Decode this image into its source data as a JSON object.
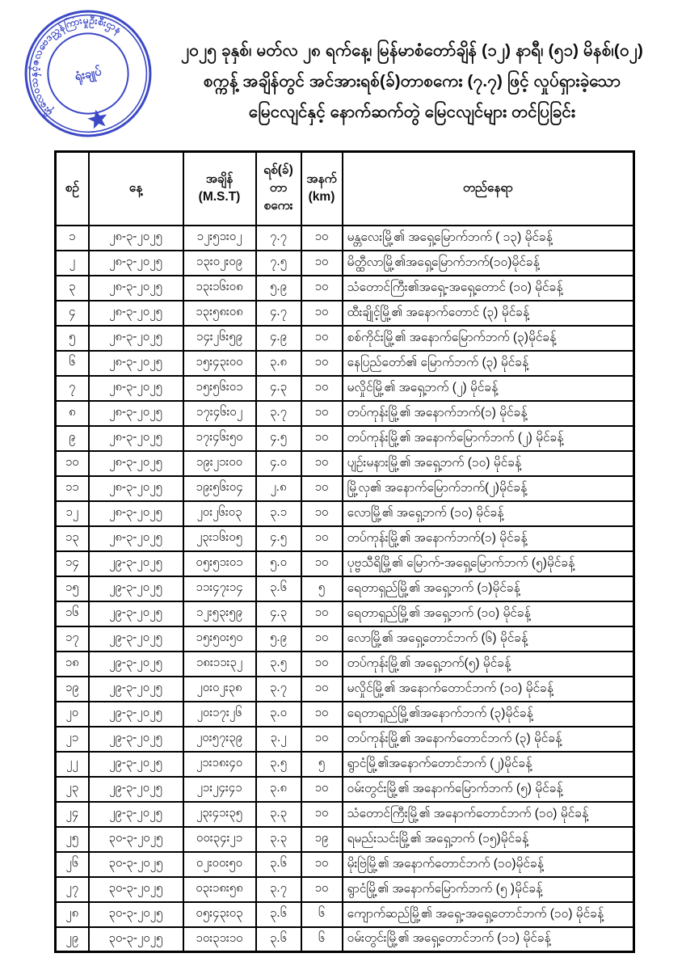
{
  "stamp": {
    "ring_text": "မိုးလေဝသနှင့်ဇလဗေဒညွှန်ကြားမှုဦးစီးဌာန",
    "center_text": "ရုံးချုပ်",
    "star_icon": "star",
    "color": "#3c49c6"
  },
  "title": {
    "lines": [
      "၂၀၂၅ ခုနှစ်၊ မတ်လ ၂၈ ရက်နေ့၊ မြန်မာစံတော်ချိန် (၁၂) နာရီ၊ (၅၁) မိနစ်၊(၀၂)",
      "စက္ကန့် အချိန်တွင် အင်အားရစ်(ခ်)တာစကေး (၇.၇) ဖြင့် လှုပ်ရှားခဲ့သော",
      "မြေငလျင်နှင့် နောက်ဆက်တွဲ မြေငလျင်များ တင်ပြခြင်း"
    ]
  },
  "table": {
    "headers": {
      "no": "စဉ်",
      "date": "နေ့",
      "time": "အချိန် (M.S.T)",
      "magnitude": "ရစ်(ခ်)\nတာ\nစကေး",
      "depth": "အနက်\n(km)",
      "location": "တည်နေရာ"
    },
    "row_keys": [
      "no",
      "date",
      "time",
      "magnitude",
      "depth",
      "location"
    ],
    "rows": [
      {
        "no": "၁",
        "date": "၂၈-၃-၂၀၂၅",
        "time": "၁၂း၅၁း၀၂",
        "magnitude": "၇.၇",
        "depth": "၁၀",
        "location": "မန္တလေးမြို့၏ အရှေ့မြောက်ဘက် ( ၁၃) မိုင်ခန့်"
      },
      {
        "no": "၂",
        "date": "၂၈-၃-၂၀၂၅",
        "time": "၁၃း၀၂း၀၉",
        "magnitude": "၇.၅",
        "depth": "၁၀",
        "location": "မိတ္ထီလာမြို့၏အရှေ့မြောက်ဘက်(၁၀)မိုင်ခန့်"
      },
      {
        "no": "၃",
        "date": "၂၈-၃-၂၀၂၅",
        "time": "၁၃း၁၆း၀၈",
        "magnitude": "၅.၉",
        "depth": "၁၀",
        "location": "သံတောင်ကြီး၏အရှေ့-အရှေ့တောင် (၁၀) မိုင်ခန့်"
      },
      {
        "no": "၄",
        "date": "၂၈-၃-၂၀၂၅",
        "time": "၁၃း၅၈း၀၈",
        "magnitude": "၄.၇",
        "depth": "၁၀",
        "location": "ထီးချိုင့်မြို့၏ အနောက်တောင် (၃) မိုင်ခန့်"
      },
      {
        "no": "၅",
        "date": "၂၈-၃-၂၀၂၅",
        "time": "၁၄း၂၆း၅၉",
        "magnitude": "၄.၉",
        "depth": "၁၀",
        "location": "စစ်ကိုင်းမြို့၏ အနောက်မြောက်ဘက် (၃)မိုင်ခန့်"
      },
      {
        "no": "၆",
        "date": "၂၈-၃-၂၀၂၅",
        "time": "၁၅း၄၃း၀၀",
        "magnitude": "၃.၈",
        "depth": "၁၀",
        "location": "နေပြည်တော်၏ မြောက်ဘက် (၃) မိုင်ခန့်"
      },
      {
        "no": "၇",
        "date": "၂၈-၃-၂၀၂၅",
        "time": "၁၅း၅၆း၀၁",
        "magnitude": "၄.၃",
        "depth": "၁၀",
        "location": "မလှိုင်မြို့၏ အရှေ့ဘက် (၂) မိုင်ခန့်"
      },
      {
        "no": "၈",
        "date": "၂၈-၃-၂၀၂၅",
        "time": "၁၇း၄၆း၀၂",
        "magnitude": "၃.၇",
        "depth": "၁၀",
        "location": "တပ်ကုန်းမြို့၏ အနောက်ဘက်(၁) မိုင်ခန့်"
      },
      {
        "no": "၉",
        "date": "၂၈-၃-၂၀၂၅",
        "time": "၁၇း၄၆း၅၀",
        "magnitude": "၄.၅",
        "depth": "၁၀",
        "location": "တပ်ကုန်းမြို့၏ အနောက်မြောက်ဘက် (၂) မိုင်ခန့်"
      },
      {
        "no": "၁၀",
        "date": "၂၈-၃-၂၀၂၅",
        "time": "၁၉း၂၁း၀၀",
        "magnitude": "၄.၀",
        "depth": "၁၀",
        "location": "ပျဉ်းမနားမြို့၏ အရှေ့ဘက် (၁၀) မိုင်ခန့်"
      },
      {
        "no": "၁၁",
        "date": "၂၈-၃-၂၀၂၅",
        "time": "၁၉း၅၆း၀၄",
        "magnitude": "၂.၈",
        "depth": "၁၀",
        "location": "မြို့လှ၏ အနောက်မြောက်ဘက်(၂)မိုင်ခန့်"
      },
      {
        "no": "၁၂",
        "date": "၂၈-၃-၂၀၂၅",
        "time": "၂၀း၂၆း၀၃",
        "magnitude": "၃.၁",
        "depth": "၁၀",
        "location": "လောမြို့၏ အရှေ့ဘက် (၁၀) မိုင်ခန့်"
      },
      {
        "no": "၁၃",
        "date": "၂၈-၃-၂၀၂၅",
        "time": "၂၃း၁၆း၀၅",
        "magnitude": "၄.၅",
        "depth": "၁၀",
        "location": "တပ်ကုန်းမြို့၏ အနောက်ဘက်(၁) မိုင်ခန့်"
      },
      {
        "no": "၁၄",
        "date": "၂၉-၃-၂၀၂၅",
        "time": "၀၅း၅၁း၀၁",
        "magnitude": "၅.၀",
        "depth": "၁၀",
        "location": "ပုဗ္ဗသီရိမြို့၏ မြောက်-အရှေ့မြောက်ဘက် (၅)မိုင်ခန့်"
      },
      {
        "no": "၁၅",
        "date": "၂၉-၃-၂၀၂၅",
        "time": "၁၁း၄၇း၁၄",
        "magnitude": "၃.၆",
        "depth": "၅",
        "location": "ရေတာရှည်မြို့၏ အရှေ့ဘက် (၁)မိုင်ခန့်"
      },
      {
        "no": "၁၆",
        "date": "၂၉-၃-၂၀၂၅",
        "time": "၁၂း၅၃း၅၉",
        "magnitude": "၄.၃",
        "depth": "၁၀",
        "location": "ရေတာရှည်မြို့၏ အရှေ့ဘက် (၁၀) မိုင်ခန့်"
      },
      {
        "no": "၁၇",
        "date": "၂၉-၃-၂၀၂၅",
        "time": "၁၅း၅၀း၅၀",
        "magnitude": "၅.၉",
        "depth": "၁၀",
        "location": "လောမြို့၏ အရှေ့တောင်ဘက် (၆) မိုင်ခန့်"
      },
      {
        "no": "၁၈",
        "date": "၂၉-၃-၂၀၂၅",
        "time": "၁၈း၁၁း၃၂",
        "magnitude": "၃.၅",
        "depth": "၁၀",
        "location": "တပ်ကုန်းမြို့၏ အရှေ့ဘက်(၅) မိုင်ခန့်"
      },
      {
        "no": "၁၉",
        "date": "၂၉-၃-၂၀၂၅",
        "time": "၂၀း၀၂း၃၈",
        "magnitude": "၃.၇",
        "depth": "၁၀",
        "location": "မလှိုင်မြို့၏ အနောက်တောင်ဘက် (၁၀) မိုင်ခန့်"
      },
      {
        "no": "၂၀",
        "date": "၂၉-၃-၂၀၂၅",
        "time": "၂၀း၁၇း၂၆",
        "magnitude": "၃.၀",
        "depth": "၁၀",
        "location": "ရေတာရှည်မြို့၏အနောက်ဘက် (၃)မိုင်ခန့်"
      },
      {
        "no": "၂၁",
        "date": "၂၉-၃-၂၀၂၅",
        "time": "၂၀း၅၇း၃၉",
        "magnitude": "၃.၂",
        "depth": "၁၀",
        "location": "တပ်ကုန်းမြို့၏ အနောက်တောင်ဘက် (၃) မိုင်ခန့်"
      },
      {
        "no": "၂၂",
        "date": "၂၉-၃-၂၀၂၅",
        "time": "၂၁း၁၈း၄၀",
        "magnitude": "၃.၅",
        "depth": "၅",
        "location": "ရွာငံမြို့၏အနောက်တောင်ဘက် (၂)မိုင်ခန့်"
      },
      {
        "no": "၂၃",
        "date": "၂၉-၃-၂၀၂၅",
        "time": "၂၁း၂၄း၄၁",
        "magnitude": "၃.၈",
        "depth": "၁၀",
        "location": "ဝမ်းတွင်းမြို့၏ အနောက်မြောက်ဘက် (၅) မိုင်ခန့်"
      },
      {
        "no": "၂၄",
        "date": "၂၉-၃-၂၀၂၅",
        "time": "၂၃း၄၁း၃၅",
        "magnitude": "၃.၃",
        "depth": "၁၀",
        "location": "သံတောင်ကြီးမြို့၏ အနောက်တောင်ဘက် (၁၀) မိုင်ခန့်"
      },
      {
        "no": "၂၅",
        "date": "၃၀-၃-၂၀၂၅",
        "time": "၀၀း၃၄း၂၁",
        "magnitude": "၃.၃",
        "depth": "၁၉",
        "location": "ရမည်းသင်းမြို့၏ အရှေ့ဘက် (၁၅)မိုင်ခန့်"
      },
      {
        "no": "၂၆",
        "date": "၃၀-၃-၂၀၂၅",
        "time": "၀၂း၀၀း၅၀",
        "magnitude": "၃.၆",
        "depth": "၁၀",
        "location": "မိုးဗြဲမြို့၏ အနောက်တောင်ဘက် (၁၀)မိုင်ခန့်"
      },
      {
        "no": "၂၇",
        "date": "၃၀-၃-၂၀၂၅",
        "time": "၀၃း၁၈း၅၈",
        "magnitude": "၃.၇",
        "depth": "၁၀",
        "location": "ရွာငံမြို့၏ အနောက်မြောက်ဘက် (၅ )မိုင်ခန့်"
      },
      {
        "no": "၂၈",
        "date": "၃၀-၃-၂၀၂၅",
        "time": "၀၅း၄၃း၀၃",
        "magnitude": "၃.၆",
        "depth": "၆",
        "location": "ကျောက်ဆည်မြို့၏ အရှေ့-အရှေ့တောင်ဘက် (၁၀) မိုင်ခန့်"
      },
      {
        "no": "၂၉",
        "date": "၃၀-၃-၂၀၂၅",
        "time": "၁၀း၃၁း၁၀",
        "magnitude": "၃.၆",
        "depth": "၆",
        "location": "ဝမ်းတွင်းမြို့၏ အရှေ့တောင်ဘက် (၁၁) မိုင်ခန့်"
      }
    ]
  }
}
